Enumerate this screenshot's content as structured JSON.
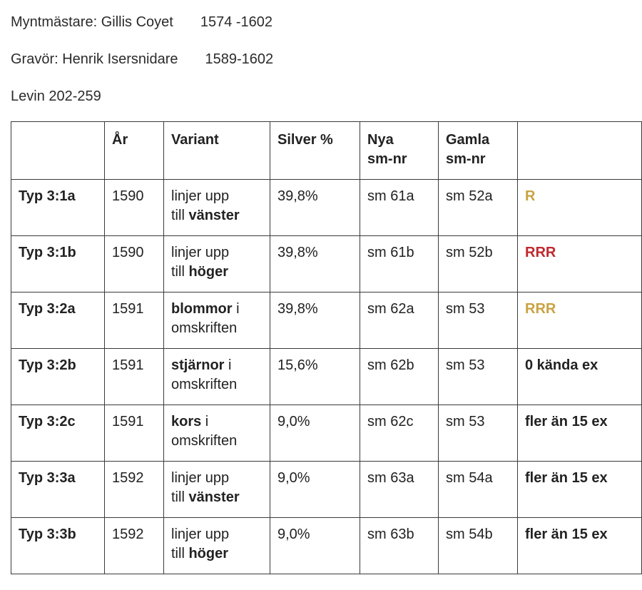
{
  "header": {
    "mintmaster_label": "Myntmästare: Gillis Coyet",
    "mintmaster_years": "1574 -1602",
    "engraver_label": "Gravör: Henrik Isersnidare",
    "engraver_years": "1589-1602",
    "reference": "Levin 202-259"
  },
  "table": {
    "columns": {
      "type": "",
      "year": "År",
      "variant": "Variant",
      "silver": "Silver %",
      "new_nr_1": "Nya",
      "new_nr_2": "sm-nr",
      "old_nr_1": "Gamla",
      "old_nr_2": "sm-nr",
      "rarity": ""
    },
    "rows": [
      {
        "type": "Typ 3:1a",
        "year": "1590",
        "variant_a": "linjer upp",
        "variant_b": "till ",
        "variant_bold": "vänster",
        "variant_c": "",
        "silver": "39,8%",
        "new_nr": "sm 61a",
        "old_nr": "sm 52a",
        "rarity": "R",
        "rarity_color": "#c9a341"
      },
      {
        "type": "Typ 3:1b",
        "year": "1590",
        "variant_a": "linjer upp",
        "variant_b": "till ",
        "variant_bold": "höger",
        "variant_c": "",
        "silver": "39,8%",
        "new_nr": "sm 61b",
        "old_nr": "sm 52b",
        "rarity": "RRR",
        "rarity_color": "#c0282d"
      },
      {
        "type": "Typ 3:2a",
        "year": "1591",
        "variant_bold": "blommor",
        "variant_tail": " i",
        "variant_line2": "omskriften",
        "silver": "39,8%",
        "new_nr": "sm 62a",
        "old_nr": "sm 53",
        "rarity": "RRR",
        "rarity_color": "#c9a341"
      },
      {
        "type": "Typ 3:2b",
        "year": "1591",
        "variant_bold": "stjärnor",
        "variant_tail": " i",
        "variant_line2": "omskriften",
        "silver": "15,6%",
        "new_nr": "sm 62b",
        "old_nr": "sm 53",
        "rarity": "0 kända ex",
        "rarity_color": "#222222"
      },
      {
        "type": "Typ 3:2c",
        "year": "1591",
        "variant_bold": "kors",
        "variant_tail": " i",
        "variant_line2": "omskriften",
        "silver": "9,0%",
        "new_nr": "sm 62c",
        "old_nr": "sm 53",
        "rarity": "fler än 15 ex",
        "rarity_color": "#222222"
      },
      {
        "type": "Typ 3:3a",
        "year": "1592",
        "variant_a": "linjer upp",
        "variant_b": "till ",
        "variant_bold": "vänster",
        "variant_c": "",
        "silver": "9,0%",
        "new_nr": "sm 63a",
        "old_nr": "sm 54a",
        "rarity": "fler än 15 ex",
        "rarity_color": "#222222"
      },
      {
        "type": "Typ 3:3b",
        "year": "1592",
        "variant_a": "linjer upp",
        "variant_b": "till ",
        "variant_bold": "höger",
        "variant_c": "",
        "silver": "9,0%",
        "new_nr": "sm 63b",
        "old_nr": "sm 54b",
        "rarity": "fler än 15 ex",
        "rarity_color": "#222222"
      }
    ]
  }
}
